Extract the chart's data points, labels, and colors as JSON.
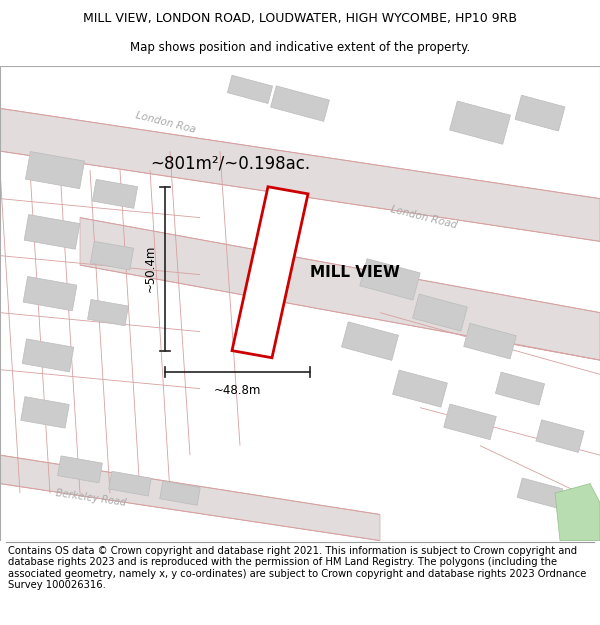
{
  "title_line1": "MILL VIEW, LONDON ROAD, LOUDWATER, HIGH WYCOMBE, HP10 9RB",
  "title_line2": "Map shows position and indicative extent of the property.",
  "footer_text": "Contains OS data © Crown copyright and database right 2021. This information is subject to Crown copyright and database rights 2023 and is reproduced with the permission of HM Land Registry. The polygons (including the associated geometry, namely x, y co-ordinates) are subject to Crown copyright and database rights 2023 Ordnance Survey 100026316.",
  "map_bg": "#f2eeee",
  "road_fill": "#e2dcdc",
  "road_edge": "#d4a8a8",
  "building_fill": "#cccccc",
  "building_edge": "#bbbbbb",
  "road_label_color": "#aaaaaa",
  "red_plot_color": "#cc0000",
  "green_fill": "#b8ddb0",
  "green_edge": "#90c088",
  "measurement_color": "#222222",
  "area_text": "~801m²/~0.198ac.",
  "width_text": "~48.8m",
  "height_text": "~50.4m",
  "label_text": "MILL VIEW",
  "london_road_label_upper": "London Roa",
  "london_road_label_lower": "London Road",
  "berkeley_road_label": "Berkeley Road",
  "title_fontsize": 9.0,
  "subtitle_fontsize": 8.5,
  "footer_fontsize": 7.2,
  "area_fontsize": 12,
  "label_fontsize": 11
}
